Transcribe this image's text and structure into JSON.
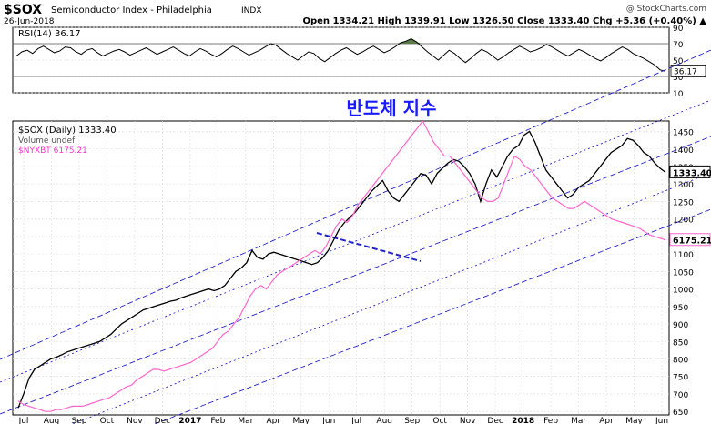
{
  "header": {
    "symbol": "$SOX",
    "name": "Semiconductor Index - Philadelphia",
    "exchange": "INDX",
    "date": "26-Jun-2018",
    "watermark": "@ StockCharts.com",
    "quote_line": "Open 1334.21  High 1339.91  Low 1326.50  Close 1333.40  Chg +5.36 (+0.40%) ▲"
  },
  "annotation": "반도체 지수",
  "chart_data": [
    {
      "type": "line",
      "panel": "rsi",
      "legend": "RSI(14) 36.17",
      "last_value": "36.17",
      "ylim": [
        10,
        90
      ],
      "ticks": [
        10,
        30,
        50,
        70,
        90
      ],
      "guides": [
        30,
        70
      ],
      "series": [
        {
          "values": [
            55,
            60,
            62,
            58,
            64,
            67,
            63,
            59,
            61,
            66,
            65,
            60,
            57,
            62,
            64,
            59,
            55,
            58,
            61,
            63,
            60,
            56,
            59,
            62,
            65,
            61,
            57,
            60,
            63,
            66,
            62,
            58,
            55,
            60,
            64,
            61,
            57,
            54,
            58,
            63,
            67,
            64,
            60,
            56,
            59,
            62,
            66,
            70,
            68,
            63,
            58,
            54,
            50,
            55,
            60,
            58,
            52,
            48,
            53,
            58,
            62,
            65,
            61,
            57,
            60,
            64,
            67,
            63,
            59,
            62,
            66,
            71,
            73,
            76,
            72,
            66,
            60,
            55,
            50,
            56,
            62,
            58,
            52,
            47,
            52,
            58,
            63,
            60,
            55,
            50,
            54,
            59,
            63,
            67,
            64,
            60,
            62,
            65,
            69,
            66,
            62,
            58,
            55,
            59,
            63,
            60,
            56,
            52,
            49,
            53,
            58,
            62,
            66,
            63,
            58,
            55,
            52,
            48,
            44,
            38,
            36.17
          ]
        }
      ]
    },
    {
      "type": "line",
      "panel": "price",
      "x_ticks": [
        "Jul",
        "Aug",
        "Sep",
        "Oct",
        "Nov",
        "Dec",
        "2017",
        "Feb",
        "Mar",
        "Apr",
        "May",
        "Jun",
        "Jul",
        "Aug",
        "Sep",
        "Oct",
        "Nov",
        "Dec",
        "2018",
        "Feb",
        "Mar",
        "Apr",
        "May",
        "Jun"
      ],
      "y_ticks": [
        650,
        700,
        750,
        800,
        850,
        900,
        950,
        1000,
        1050,
        1100,
        1150,
        1200,
        1250,
        1300,
        1350,
        1400,
        1450
      ],
      "ylim": [
        640,
        1480
      ],
      "legend": [
        "$SOX (Daily) 1333.40",
        "Volume undef",
        "$NYXBT 6175.21"
      ],
      "series": [
        {
          "name": "$SOX (Daily) 1333.40",
          "last_label": "1333.40",
          "color": "#000000",
          "values": [
            660,
            700,
            745,
            770,
            780,
            790,
            800,
            805,
            812,
            820,
            825,
            830,
            835,
            840,
            845,
            850,
            860,
            870,
            885,
            900,
            910,
            920,
            930,
            940,
            945,
            950,
            955,
            960,
            965,
            968,
            975,
            980,
            985,
            990,
            995,
            1000,
            995,
            1000,
            1010,
            1030,
            1050,
            1060,
            1075,
            1110,
            1090,
            1085,
            1100,
            1105,
            1100,
            1095,
            1090,
            1085,
            1080,
            1075,
            1070,
            1075,
            1090,
            1110,
            1140,
            1170,
            1190,
            1205,
            1220,
            1240,
            1260,
            1280,
            1295,
            1310,
            1280,
            1260,
            1250,
            1270,
            1290,
            1310,
            1330,
            1325,
            1300,
            1330,
            1345,
            1360,
            1370,
            1365,
            1350,
            1330,
            1300,
            1250,
            1300,
            1340,
            1320,
            1350,
            1380,
            1400,
            1410,
            1440,
            1450,
            1420,
            1380,
            1340,
            1320,
            1300,
            1280,
            1260,
            1270,
            1290,
            1300,
            1310,
            1330,
            1350,
            1370,
            1390,
            1400,
            1410,
            1430,
            1425,
            1410,
            1390,
            1380,
            1360,
            1345,
            1333.4
          ]
        },
        {
          "name": "$NYXBT 6175.21",
          "last_label": "6175.21",
          "color": "#ff66cc",
          "values": [
            680,
            670,
            665,
            660,
            655,
            650,
            650,
            655,
            655,
            660,
            665,
            665,
            665,
            670,
            675,
            680,
            685,
            690,
            700,
            710,
            720,
            725,
            740,
            750,
            760,
            770,
            770,
            765,
            770,
            775,
            780,
            785,
            790,
            800,
            810,
            820,
            830,
            850,
            870,
            880,
            900,
            920,
            950,
            980,
            1000,
            1010,
            1000,
            1020,
            1040,
            1050,
            1060,
            1070,
            1080,
            1090,
            1100,
            1110,
            1100,
            1120,
            1150,
            1180,
            1200,
            1190,
            1210,
            1240,
            1260,
            1280,
            1300,
            1320,
            1340,
            1360,
            1380,
            1400,
            1420,
            1440,
            1460,
            1480,
            1450,
            1420,
            1400,
            1380,
            1380,
            1360,
            1340,
            1320,
            1300,
            1280,
            1260,
            1250,
            1250,
            1260,
            1300,
            1340,
            1380,
            1370,
            1350,
            1340,
            1320,
            1300,
            1280,
            1260,
            1250,
            1240,
            1230,
            1230,
            1240,
            1250,
            1240,
            1230,
            1220,
            1210,
            1200,
            1195,
            1190,
            1185,
            1180,
            1175,
            1165,
            1155,
            1150,
            1145,
            1140
          ]
        }
      ]
    }
  ]
}
